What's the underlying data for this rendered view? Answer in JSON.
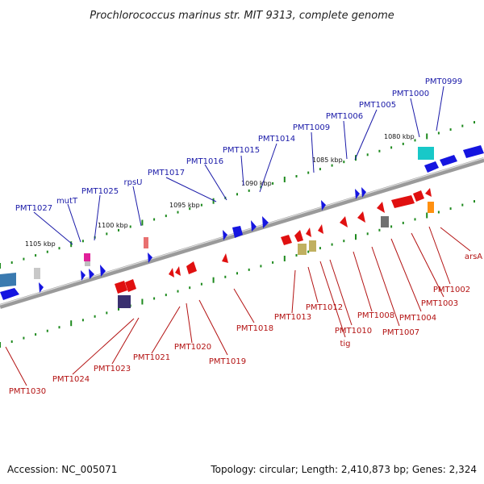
{
  "title": "Prochlorococcus marinus str. MIT 9313, complete genome",
  "footer": {
    "accession": "Accession: NC_005071",
    "summary": "Topology: circular; Length: 2,410,873 bp; Genes: 2,324"
  },
  "colors": {
    "top_label": "#1a1aa8",
    "bottom_label": "#b31212",
    "top_gene": "#1515e0",
    "bottom_gene": "#e01010",
    "tick": "#1e8a1e",
    "backbone": "#8a8a8a"
  },
  "kbp_marks": [
    "1080 kbp",
    "1085 kbp",
    "1090 kbp",
    "1095 kbp",
    "1100 kbp",
    "1105 kbp"
  ],
  "top_labels": [
    "PMT0999",
    "PMT1000",
    "PMT1005",
    "PMT1006",
    "PMT1009",
    "PMT1014",
    "PMT1015",
    "PMT1016",
    "PMT1017",
    "rpsU",
    "PMT1025",
    "mutT",
    "PMT1027"
  ],
  "bottom_labels": [
    "arsA",
    "PMT1002",
    "PMT1003",
    "PMT1004",
    "PMT1007",
    "PMT1008",
    "PMT1010",
    "tig",
    "PMT1012",
    "PMT1013",
    "PMT1018",
    "PMT1019",
    "PMT1020",
    "PMT1021",
    "PMT1023",
    "PMT1024",
    "PMT1030"
  ]
}
